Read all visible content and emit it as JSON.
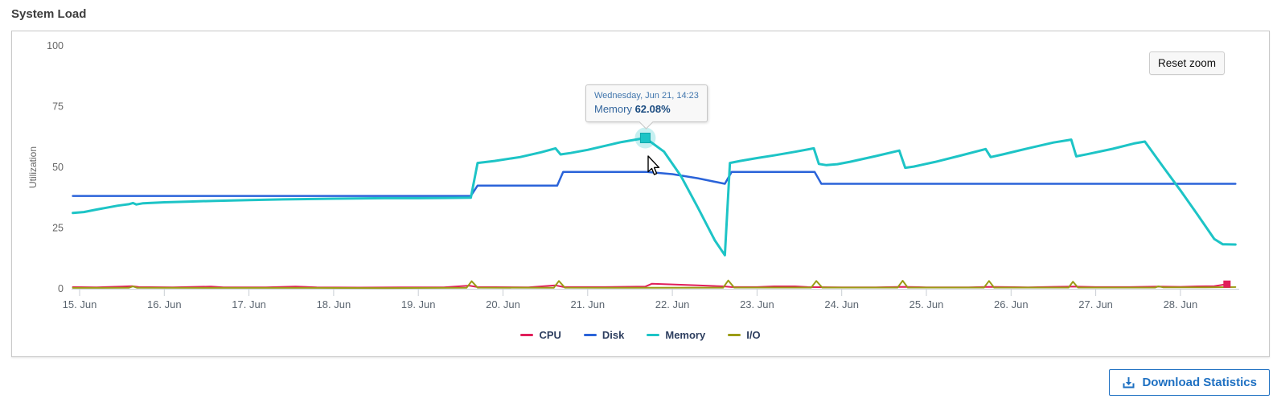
{
  "title": "System Load",
  "reset_zoom": {
    "label": "Reset zoom"
  },
  "tooltip": {
    "header": "Wednesday, Jun 21, 14:23",
    "series_label": "Memory",
    "value": "62.08%"
  },
  "download": {
    "label": "Download Statistics"
  },
  "colors": {
    "cpu": "#e01e5a",
    "disk": "#2a63d9",
    "memory": "#1dc4c6",
    "io": "#9b9c15",
    "accent_blue": "#1e70c2",
    "axis_line": "#c9ced4",
    "axis_text": "#5b6570",
    "y_text": "#666666"
  },
  "chart_data": {
    "type": "line",
    "title": "System Load",
    "xlabel": "",
    "ylabel": "Utilization",
    "ylim": [
      0,
      100
    ],
    "y_ticks": [
      0,
      25,
      50,
      75,
      100
    ],
    "x_tick_days": [
      15,
      16,
      17,
      18,
      19,
      20,
      21,
      22,
      23,
      24,
      25,
      26,
      27,
      28
    ],
    "x_tick_labels": [
      "15. Jun",
      "16. Jun",
      "17. Jun",
      "18. Jun",
      "19. Jun",
      "20. Jun",
      "21. Jun",
      "22. Jun",
      "23. Jun",
      "24. Jun",
      "25. Jun",
      "26. Jun",
      "27. Jun",
      "28. Jun"
    ],
    "x_range": [
      14.92,
      28.66
    ],
    "grid": false,
    "legend_position": "bottom",
    "series": [
      {
        "name": "CPU",
        "color": "#e01e5a",
        "width": 2,
        "points": [
          [
            14.92,
            0.7
          ],
          [
            15.2,
            0.6
          ],
          [
            15.5,
            0.9
          ],
          [
            15.62,
            1.1
          ],
          [
            15.7,
            0.7
          ],
          [
            16.1,
            0.6
          ],
          [
            16.55,
            0.9
          ],
          [
            16.7,
            0.6
          ],
          [
            17.2,
            0.6
          ],
          [
            17.55,
            0.9
          ],
          [
            17.8,
            0.6
          ],
          [
            18.3,
            0.5
          ],
          [
            18.8,
            0.6
          ],
          [
            19.3,
            0.6
          ],
          [
            19.6,
            1.3
          ],
          [
            19.7,
            0.7
          ],
          [
            20.3,
            0.6
          ],
          [
            20.62,
            1.4
          ],
          [
            20.72,
            0.7
          ],
          [
            21.2,
            0.7
          ],
          [
            21.68,
            0.9
          ],
          [
            21.76,
            2.1
          ],
          [
            22.0,
            1.8
          ],
          [
            22.3,
            1.4
          ],
          [
            22.6,
            1.0
          ],
          [
            22.7,
            0.7
          ],
          [
            23.0,
            0.7
          ],
          [
            23.2,
            1.0
          ],
          [
            23.45,
            1.0
          ],
          [
            23.6,
            0.7
          ],
          [
            24.0,
            0.6
          ],
          [
            24.4,
            0.6
          ],
          [
            24.72,
            0.8
          ],
          [
            25.0,
            0.6
          ],
          [
            25.5,
            0.6
          ],
          [
            25.74,
            0.8
          ],
          [
            26.2,
            0.6
          ],
          [
            26.5,
            0.8
          ],
          [
            26.73,
            0.9
          ],
          [
            27.0,
            0.7
          ],
          [
            27.4,
            0.7
          ],
          [
            27.74,
            0.9
          ],
          [
            28.0,
            0.8
          ],
          [
            28.2,
            1.0
          ],
          [
            28.4,
            1.1
          ],
          [
            28.55,
            1.9
          ]
        ]
      },
      {
        "name": "Disk",
        "color": "#2a63d9",
        "width": 2.5,
        "points": [
          [
            14.92,
            38.2
          ],
          [
            19.62,
            38.2
          ],
          [
            19.7,
            42.5
          ],
          [
            20.64,
            42.5
          ],
          [
            20.71,
            48.1
          ],
          [
            21.7,
            48.1
          ],
          [
            22.0,
            47.2
          ],
          [
            22.3,
            45.5
          ],
          [
            22.62,
            43.2
          ],
          [
            22.7,
            48.1
          ],
          [
            23.68,
            48.1
          ],
          [
            23.76,
            43.2
          ],
          [
            28.65,
            43.2
          ]
        ]
      },
      {
        "name": "Memory",
        "color": "#1dc4c6",
        "width": 3,
        "points": [
          [
            14.92,
            31.2
          ],
          [
            15.05,
            31.6
          ],
          [
            15.2,
            32.6
          ],
          [
            15.45,
            34.2
          ],
          [
            15.58,
            34.8
          ],
          [
            15.63,
            35.3
          ],
          [
            15.67,
            34.7
          ],
          [
            15.75,
            35.2
          ],
          [
            16.0,
            35.6
          ],
          [
            16.3,
            35.9
          ],
          [
            16.6,
            36.2
          ],
          [
            17.0,
            36.5
          ],
          [
            17.4,
            36.8
          ],
          [
            18.0,
            37.1
          ],
          [
            18.6,
            37.3
          ],
          [
            19.0,
            37.3
          ],
          [
            19.3,
            37.4
          ],
          [
            19.62,
            37.5
          ],
          [
            19.7,
            51.8
          ],
          [
            19.9,
            52.6
          ],
          [
            20.2,
            54.2
          ],
          [
            20.45,
            56.2
          ],
          [
            20.62,
            57.8
          ],
          [
            20.68,
            55.3
          ],
          [
            20.8,
            55.9
          ],
          [
            21.0,
            57.2
          ],
          [
            21.2,
            58.8
          ],
          [
            21.4,
            60.4
          ],
          [
            21.68,
            62.08
          ],
          [
            21.9,
            56.5
          ],
          [
            22.1,
            46.5
          ],
          [
            22.3,
            33.5
          ],
          [
            22.5,
            20.0
          ],
          [
            22.62,
            13.8
          ],
          [
            22.68,
            51.8
          ],
          [
            22.8,
            52.6
          ],
          [
            23.0,
            53.8
          ],
          [
            23.2,
            54.9
          ],
          [
            23.45,
            56.4
          ],
          [
            23.67,
            57.8
          ],
          [
            23.73,
            51.4
          ],
          [
            23.82,
            50.9
          ],
          [
            23.95,
            51.3
          ],
          [
            24.1,
            52.3
          ],
          [
            24.4,
            54.6
          ],
          [
            24.68,
            56.9
          ],
          [
            24.75,
            49.8
          ],
          [
            24.85,
            50.3
          ],
          [
            25.1,
            52.2
          ],
          [
            25.4,
            54.8
          ],
          [
            25.7,
            57.5
          ],
          [
            25.76,
            54.2
          ],
          [
            25.9,
            55.3
          ],
          [
            26.2,
            57.8
          ],
          [
            26.5,
            60.2
          ],
          [
            26.71,
            61.4
          ],
          [
            26.77,
            54.5
          ],
          [
            26.9,
            55.4
          ],
          [
            27.2,
            57.6
          ],
          [
            27.45,
            59.8
          ],
          [
            27.58,
            60.6
          ],
          [
            27.8,
            50.0
          ],
          [
            28.0,
            40.5
          ],
          [
            28.2,
            30.6
          ],
          [
            28.4,
            20.5
          ],
          [
            28.5,
            18.3
          ],
          [
            28.65,
            18.2
          ]
        ]
      },
      {
        "name": "I/O",
        "color": "#9b9c15",
        "width": 2,
        "points": [
          [
            14.92,
            0.35
          ],
          [
            15.58,
            0.4
          ],
          [
            15.63,
            1.0
          ],
          [
            15.68,
            0.4
          ],
          [
            16.6,
            0.35
          ],
          [
            17.6,
            0.35
          ],
          [
            18.6,
            0.3
          ],
          [
            19.57,
            0.4
          ],
          [
            19.63,
            3.1
          ],
          [
            19.7,
            0.45
          ],
          [
            20.6,
            0.4
          ],
          [
            20.66,
            3.2
          ],
          [
            20.73,
            0.45
          ],
          [
            21.5,
            0.4
          ],
          [
            22.6,
            0.45
          ],
          [
            22.66,
            3.4
          ],
          [
            22.73,
            0.5
          ],
          [
            23.64,
            0.5
          ],
          [
            23.7,
            3.2
          ],
          [
            23.77,
            0.5
          ],
          [
            24.66,
            0.5
          ],
          [
            24.72,
            3.3
          ],
          [
            24.78,
            0.5
          ],
          [
            25.68,
            0.5
          ],
          [
            25.74,
            3.2
          ],
          [
            25.8,
            0.5
          ],
          [
            26.68,
            0.5
          ],
          [
            26.73,
            2.9
          ],
          [
            26.79,
            0.5
          ],
          [
            27.7,
            0.5
          ],
          [
            27.74,
            1.0
          ],
          [
            27.8,
            0.55
          ],
          [
            28.3,
            0.6
          ],
          [
            28.65,
            0.7
          ]
        ]
      }
    ],
    "highlight_point": {
      "series": "Memory",
      "x": 21.68,
      "y": 62.08
    },
    "end_marker": {
      "series": "CPU",
      "x": 28.55,
      "y": 1.9
    }
  }
}
